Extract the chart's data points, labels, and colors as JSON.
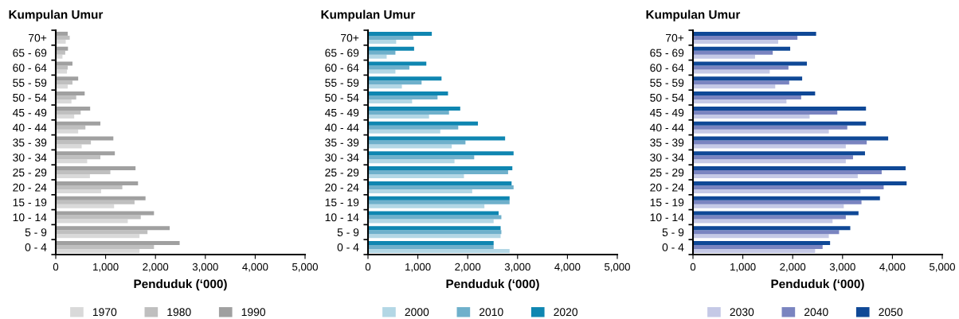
{
  "chart_data": [
    {
      "type": "bar",
      "orientation": "horizontal",
      "ylabel": "Kumpulan Umur",
      "xlabel": "Penduduk (‘000)",
      "categories": [
        "70+",
        "65 - 69",
        "60 - 64",
        "55 - 59",
        "50 - 54",
        "45 - 49",
        "40 - 44",
        "35 - 39",
        "30 - 34",
        "25 - 29",
        "20 - 24",
        "15 - 19",
        "10 - 14",
        "5 - 9",
        "0 - 4"
      ],
      "series": [
        {
          "name": "1970",
          "color": "#d9d9d9",
          "values": [
            200,
            135,
            225,
            240,
            315,
            370,
            450,
            520,
            630,
            685,
            910,
            1170,
            1445,
            1680,
            1680
          ]
        },
        {
          "name": "1980",
          "color": "#bfbfbf",
          "values": [
            280,
            190,
            240,
            335,
            410,
            500,
            595,
            705,
            895,
            1095,
            1335,
            1580,
            1705,
            1840,
            1970
          ]
        },
        {
          "name": "1990",
          "color": "#a0a0a0",
          "values": [
            240,
            245,
            335,
            450,
            580,
            690,
            895,
            1155,
            1185,
            1600,
            1650,
            1800,
            1970,
            2285,
            2485
          ]
        }
      ],
      "xlim": [
        0,
        5000
      ],
      "xticks": [
        0,
        {
          "value": 1000,
          "label": "1,000"
        },
        {
          "value": 2000,
          "label": "2,000"
        },
        {
          "value": 3000,
          "label": "3,000"
        },
        {
          "value": 4000,
          "label": "4,000"
        },
        {
          "value": 5000,
          "label": "5,000"
        }
      ],
      "grid": false,
      "legend": "bottom"
    },
    {
      "type": "bar",
      "orientation": "horizontal",
      "ylabel": "Kumpulan Umur",
      "xlabel": "Penduduk (‘000)",
      "categories": [
        "70+",
        "65 - 69",
        "60 - 64",
        "55 - 59",
        "50 - 54",
        "45 - 49",
        "40 - 44",
        "35 - 39",
        "30 - 34",
        "25 - 29",
        "20 - 24",
        "15 - 19",
        "10 - 14",
        "5 - 9",
        "0 - 4"
      ],
      "series": [
        {
          "name": "2000",
          "color": "#b3d7e5",
          "values": [
            565,
            375,
            550,
            680,
            885,
            1225,
            1450,
            1680,
            1735,
            1925,
            2090,
            2335,
            2520,
            2660,
            2840
          ]
        },
        {
          "name": "2010",
          "color": "#6fb0cb",
          "values": [
            910,
            550,
            830,
            1075,
            1395,
            1625,
            1810,
            1955,
            2130,
            2810,
            2920,
            2840,
            2675,
            2675,
            2520
          ]
        },
        {
          "name": "2020",
          "color": "#0f86b1",
          "values": [
            1280,
            925,
            1170,
            1475,
            1605,
            1850,
            2205,
            2750,
            2920,
            2895,
            2880,
            2840,
            2620,
            2660,
            2520
          ]
        }
      ],
      "xlim": [
        0,
        5000
      ],
      "xticks": [
        0,
        {
          "value": 1000,
          "label": "1,000"
        },
        {
          "value": 2000,
          "label": "2,000"
        },
        {
          "value": 3000,
          "label": "3,000"
        },
        {
          "value": 4000,
          "label": "4,000"
        },
        {
          "value": 5000,
          "label": "5,000"
        }
      ],
      "grid": false,
      "legend": "bottom"
    },
    {
      "type": "bar",
      "orientation": "horizontal",
      "ylabel": "Kumpulan Umur",
      "xlabel": "Penduduk (‘000)",
      "categories": [
        "70+",
        "65 - 69",
        "60 - 64",
        "55 - 59",
        "50 - 54",
        "45 - 49",
        "40 - 44",
        "35 - 39",
        "30 - 34",
        "25 - 29",
        "20 - 24",
        "15 - 19",
        "10 - 14",
        "5 - 9",
        "0 - 4"
      ],
      "series": [
        {
          "name": "2030",
          "color": "#c5c9e6",
          "values": [
            1710,
            1245,
            1540,
            1650,
            1875,
            2340,
            2725,
            3065,
            3065,
            3305,
            3360,
            3025,
            2800,
            2725,
            2450
          ]
        },
        {
          "name": "2040",
          "color": "#7a84c0",
          "values": [
            2095,
            1600,
            1915,
            1930,
            2170,
            2895,
            3095,
            3485,
            3210,
            3785,
            3825,
            3380,
            3065,
            2930,
            2600
          ]
        },
        {
          "name": "2050",
          "color": "#0f4896",
          "values": [
            2470,
            1950,
            2285,
            2190,
            2450,
            3470,
            3470,
            3915,
            3450,
            4265,
            4285,
            3750,
            3320,
            3155,
            2750
          ]
        }
      ],
      "xlim": [
        0,
        5000
      ],
      "xticks": [
        0,
        {
          "value": 1000,
          "label": "1,000"
        },
        {
          "value": 2000,
          "label": "2,000"
        },
        {
          "value": 3000,
          "label": "3,000"
        },
        {
          "value": 4000,
          "label": "4,000"
        },
        {
          "value": 5000,
          "label": "5,000"
        }
      ],
      "grid": false,
      "legend": "bottom"
    }
  ]
}
